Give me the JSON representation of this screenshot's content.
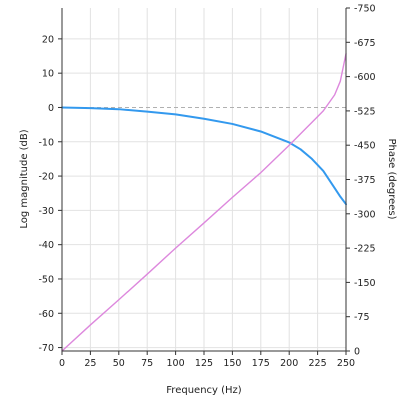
{
  "chart_data": {
    "type": "line",
    "xlabel": "Frequency (Hz)",
    "ylabel_left": "Log magnitude (dB)",
    "ylabel_right": "Phase (degrees)",
    "x_range": [
      0,
      250
    ],
    "y_left_range": [
      -71,
      29
    ],
    "y_right_range": [
      -750,
      0
    ],
    "x_ticks": [
      0,
      25,
      50,
      75,
      100,
      125,
      150,
      175,
      200,
      225,
      250
    ],
    "y_left_ticks": [
      20,
      10,
      0,
      -10,
      -20,
      -30,
      -40,
      -50,
      -60,
      -70
    ],
    "y_right_ticks": [
      0,
      -75,
      -150,
      -225,
      -300,
      -375,
      -450,
      -525,
      -600,
      -675,
      -750
    ],
    "grid": true,
    "reference_line": {
      "axis": "left",
      "y": 0,
      "style": "dashed",
      "color": "#b0b0b0"
    },
    "series": [
      {
        "axis": "left",
        "color": "#3399ee",
        "x": [
          0,
          25,
          50,
          75,
          100,
          125,
          150,
          175,
          200,
          210,
          220,
          230,
          240,
          245,
          250
        ],
        "y": [
          0,
          -0.2,
          -0.5,
          -1.2,
          -2.0,
          -3.3,
          -4.8,
          -7.0,
          -10.2,
          -12.2,
          -15.0,
          -18.5,
          -23.5,
          -26.0,
          -28.2
        ]
      },
      {
        "axis": "right",
        "color": "#dd88dd",
        "x": [
          0,
          25,
          50,
          75,
          100,
          125,
          150,
          175,
          200,
          220,
          230,
          240,
          245,
          250
        ],
        "y": [
          0,
          -57,
          -112,
          -168,
          -225,
          -280,
          -336,
          -390,
          -450,
          -500,
          -525,
          -560,
          -590,
          -650
        ]
      }
    ]
  }
}
